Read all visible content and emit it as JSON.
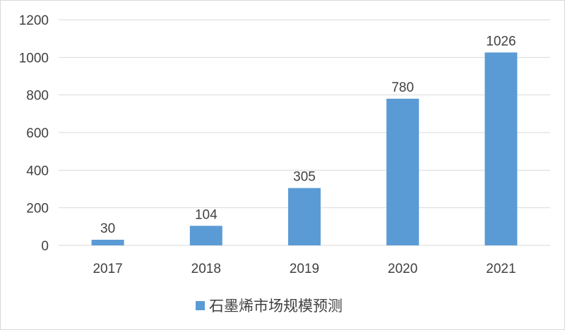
{
  "chart_data": {
    "type": "bar",
    "categories": [
      "2017",
      "2018",
      "2019",
      "2020",
      "2021"
    ],
    "series": [
      {
        "name": "石墨烯市场规模预测",
        "values": [
          30,
          104,
          305,
          780,
          1026
        ]
      }
    ],
    "data_labels": [
      "30",
      "104",
      "305",
      "780",
      "1026"
    ],
    "y_ticks": [
      "0",
      "200",
      "400",
      "600",
      "800",
      "1000",
      "1200"
    ],
    "ylim": [
      0,
      1200
    ],
    "grid": true,
    "legend_position": "bottom",
    "bar_color": "#5b9bd5",
    "grid_color": "#d9d9d9",
    "text_color": "#404040"
  },
  "legend": {
    "label": "石墨烯市场规模预测"
  }
}
